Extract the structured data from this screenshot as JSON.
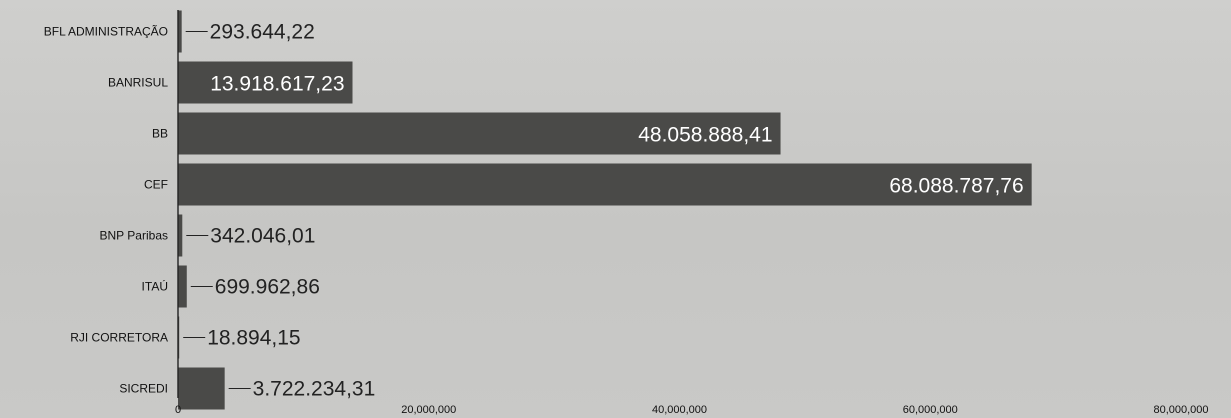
{
  "chart_data": {
    "type": "bar",
    "orientation": "horizontal",
    "categories": [
      "BFL ADMINISTRAÇÃO",
      "BANRISUL",
      "BB",
      "CEF",
      "BNP Paribas",
      "ITAÚ",
      "RJI CORRETORA",
      "SICREDI"
    ],
    "values": [
      293644.22,
      13918617.23,
      48058888.41,
      68088787.76,
      342046.01,
      699962.86,
      18894.15,
      3722234.31
    ],
    "value_labels": [
      "293.644,22",
      "13.918.617,23",
      "48.058.888,41",
      "68.088.787,76",
      "342.046,01",
      "699.962,86",
      "18.894,15",
      "3.722.234,31"
    ],
    "xlim": [
      0,
      80000000
    ],
    "x_ticks": [
      0,
      20000000,
      40000000,
      60000000,
      80000000
    ],
    "x_tick_labels": [
      "0",
      "20,000,000",
      "40,000,000",
      "60,000,000",
      "80,000,000"
    ],
    "grid": false,
    "bar_color": "#4a4a48",
    "label_inside_color": "#ffffff",
    "label_outside_color": "#222222"
  }
}
